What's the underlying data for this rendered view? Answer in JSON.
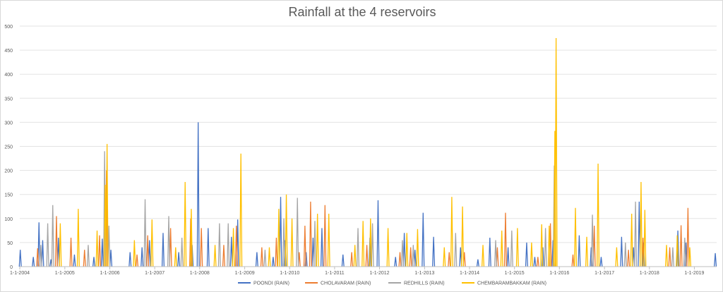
{
  "chart_data": {
    "type": "line",
    "title": "Rainfall at the 4 reservoirs",
    "xlabel": "",
    "ylabel": "",
    "ylim": [
      0,
      500
    ],
    "yticks": [
      0,
      50,
      100,
      150,
      200,
      250,
      300,
      350,
      400,
      450,
      500
    ],
    "xlim": [
      "2004-01-01",
      "2019-07-01"
    ],
    "xticks": [
      "1-1-2004",
      "1-1-2005",
      "1-1-2006",
      "1-1-2007",
      "1-1-2008",
      "1-1-2009",
      "1-1-2010",
      "1-1-2011",
      "1-1-2012",
      "1-1-2013",
      "1-1-2014",
      "1-1-2015",
      "1-1-2016",
      "1-1-2017",
      "1-1-2018",
      "1-1-2019"
    ],
    "grid": true,
    "legend": "bottom",
    "series": [
      {
        "name": "POONDI (RAIN)",
        "color": "#4472c4",
        "points": [
          [
            "2004-01-05",
            35
          ],
          [
            "2004-04-20",
            20
          ],
          [
            "2004-06-05",
            92
          ],
          [
            "2004-07-05",
            55
          ],
          [
            "2004-09-10",
            15
          ],
          [
            "2004-11-10",
            60
          ],
          [
            "2005-03-20",
            25
          ],
          [
            "2005-08-25",
            20
          ],
          [
            "2005-11-01",
            58
          ],
          [
            "2006-01-10",
            35
          ],
          [
            "2006-06-15",
            30
          ],
          [
            "2006-09-20",
            40
          ],
          [
            "2006-11-20",
            55
          ],
          [
            "2007-03-10",
            70
          ],
          [
            "2007-07-15",
            30
          ],
          [
            "2007-11-01",
            45
          ],
          [
            "2007-12-20",
            300
          ],
          [
            "2008-03-10",
            80
          ],
          [
            "2008-09-15",
            62
          ],
          [
            "2008-11-05",
            98
          ],
          [
            "2009-04-10",
            30
          ],
          [
            "2009-08-20",
            20
          ],
          [
            "2009-10-20",
            145
          ],
          [
            "2009-11-25",
            55
          ],
          [
            "2010-05-15",
            30
          ],
          [
            "2010-07-10",
            60
          ],
          [
            "2010-09-20",
            80
          ],
          [
            "2011-03-10",
            25
          ],
          [
            "2011-10-15",
            60
          ],
          [
            "2011-12-20",
            138
          ],
          [
            "2012-05-10",
            20
          ],
          [
            "2012-07-20",
            70
          ],
          [
            "2012-10-15",
            35
          ],
          [
            "2012-12-20",
            112
          ],
          [
            "2013-03-15",
            62
          ],
          [
            "2013-10-20",
            40
          ],
          [
            "2014-03-10",
            15
          ],
          [
            "2014-06-15",
            60
          ],
          [
            "2014-11-10",
            40
          ],
          [
            "2015-04-10",
            50
          ],
          [
            "2015-06-15",
            20
          ],
          [
            "2015-08-20",
            40
          ],
          [
            "2015-11-10",
            55
          ],
          [
            "2016-06-10",
            65
          ],
          [
            "2016-09-15",
            40
          ],
          [
            "2016-12-05",
            20
          ],
          [
            "2017-05-20",
            62
          ],
          [
            "2017-08-25",
            40
          ],
          [
            "2017-10-10",
            135
          ],
          [
            "2017-11-15",
            50
          ],
          [
            "2018-08-20",
            75
          ],
          [
            "2018-10-25",
            50
          ],
          [
            "2019-06-20",
            28
          ]
        ]
      },
      {
        "name": "CHOLAVARAM (RAIN)",
        "color": "#ed7d31",
        "points": [
          [
            "2004-05-25",
            38
          ],
          [
            "2004-10-25",
            105
          ],
          [
            "2005-02-20",
            60
          ],
          [
            "2005-06-10",
            35
          ],
          [
            "2005-10-10",
            65
          ],
          [
            "2005-12-05",
            200
          ],
          [
            "2006-08-10",
            25
          ],
          [
            "2006-11-05",
            65
          ],
          [
            "2007-05-10",
            80
          ],
          [
            "2007-10-20",
            100
          ],
          [
            "2008-01-15",
            80
          ],
          [
            "2008-07-15",
            45
          ],
          [
            "2008-10-25",
            85
          ],
          [
            "2009-05-20",
            40
          ],
          [
            "2009-09-15",
            60
          ],
          [
            "2010-03-20",
            30
          ],
          [
            "2010-05-05",
            85
          ],
          [
            "2010-06-20",
            135
          ],
          [
            "2010-10-15",
            128
          ],
          [
            "2011-05-20",
            30
          ],
          [
            "2011-09-20",
            45
          ],
          [
            "2012-06-15",
            30
          ],
          [
            "2012-09-10",
            40
          ],
          [
            "2013-07-20",
            30
          ],
          [
            "2013-11-20",
            30
          ],
          [
            "2014-08-15",
            40
          ],
          [
            "2014-10-20",
            112
          ],
          [
            "2015-07-10",
            20
          ],
          [
            "2015-10-20",
            90
          ],
          [
            "2016-04-20",
            25
          ],
          [
            "2016-10-10",
            85
          ],
          [
            "2017-07-15",
            35
          ],
          [
            "2017-11-10",
            60
          ],
          [
            "2018-06-15",
            40
          ],
          [
            "2018-09-15",
            86
          ],
          [
            "2018-11-10",
            122
          ]
        ]
      },
      {
        "name": "REDHILLS (RAIN)",
        "color": "#a5a5a5",
        "points": [
          [
            "2004-06-20",
            45
          ],
          [
            "2004-08-15",
            90
          ],
          [
            "2004-09-25",
            128
          ],
          [
            "2005-07-10",
            45
          ],
          [
            "2005-11-20",
            240
          ],
          [
            "2005-12-25",
            85
          ],
          [
            "2006-10-15",
            140
          ],
          [
            "2007-04-25",
            105
          ],
          [
            "2007-08-10",
            60
          ],
          [
            "2008-06-10",
            90
          ],
          [
            "2008-08-20",
            90
          ],
          [
            "2009-06-15",
            35
          ],
          [
            "2009-11-15",
            100
          ],
          [
            "2010-03-05",
            143
          ],
          [
            "2010-07-25",
            95
          ],
          [
            "2011-07-10",
            80
          ],
          [
            "2011-11-05",
            90
          ],
          [
            "2012-07-05",
            55
          ],
          [
            "2012-10-01",
            45
          ],
          [
            "2013-09-10",
            70
          ],
          [
            "2014-08-01",
            55
          ],
          [
            "2014-12-10",
            75
          ],
          [
            "2015-09-10",
            80
          ],
          [
            "2015-11-20",
            210
          ],
          [
            "2016-09-25",
            108
          ],
          [
            "2017-06-20",
            50
          ],
          [
            "2017-09-10",
            135
          ],
          [
            "2018-07-10",
            40
          ],
          [
            "2018-10-15",
            60
          ]
        ]
      },
      {
        "name": "CHEMBARAMBAKKAM (RAIN)",
        "color": "#ffc000",
        "points": [
          [
            "2004-11-25",
            90
          ],
          [
            "2005-04-20",
            120
          ],
          [
            "2005-09-20",
            75
          ],
          [
            "2005-11-25",
            170
          ],
          [
            "2005-12-10",
            255
          ],
          [
            "2006-07-20",
            55
          ],
          [
            "2006-12-10",
            98
          ],
          [
            "2007-06-20",
            40
          ],
          [
            "2007-09-05",
            176
          ],
          [
            "2007-10-25",
            120
          ],
          [
            "2008-05-05",
            45
          ],
          [
            "2008-10-01",
            80
          ],
          [
            "2008-12-01",
            235
          ],
          [
            "2009-07-20",
            40
          ],
          [
            "2009-10-05",
            120
          ],
          [
            "2009-12-05",
            150
          ],
          [
            "2010-01-20",
            100
          ],
          [
            "2010-08-15",
            110
          ],
          [
            "2010-11-15",
            110
          ],
          [
            "2011-06-15",
            45
          ],
          [
            "2011-08-20",
            95
          ],
          [
            "2011-10-20",
            100
          ],
          [
            "2012-03-10",
            80
          ],
          [
            "2012-08-10",
            70
          ],
          [
            "2012-11-05",
            78
          ],
          [
            "2013-06-10",
            40
          ],
          [
            "2013-08-10",
            145
          ],
          [
            "2013-11-05",
            125
          ],
          [
            "2014-04-20",
            45
          ],
          [
            "2014-09-20",
            75
          ],
          [
            "2015-01-25",
            80
          ],
          [
            "2015-05-20",
            50
          ],
          [
            "2015-08-10",
            88
          ],
          [
            "2015-10-10",
            85
          ],
          [
            "2015-11-25",
            282
          ],
          [
            "2015-12-05",
            475
          ],
          [
            "2016-05-10",
            122
          ],
          [
            "2016-08-10",
            62
          ],
          [
            "2016-11-10",
            214
          ],
          [
            "2017-04-10",
            40
          ],
          [
            "2017-08-10",
            110
          ],
          [
            "2017-10-25",
            176
          ],
          [
            "2017-11-25",
            118
          ],
          [
            "2018-05-20",
            45
          ],
          [
            "2018-08-15",
            65
          ],
          [
            "2018-11-25",
            40
          ]
        ]
      }
    ]
  }
}
